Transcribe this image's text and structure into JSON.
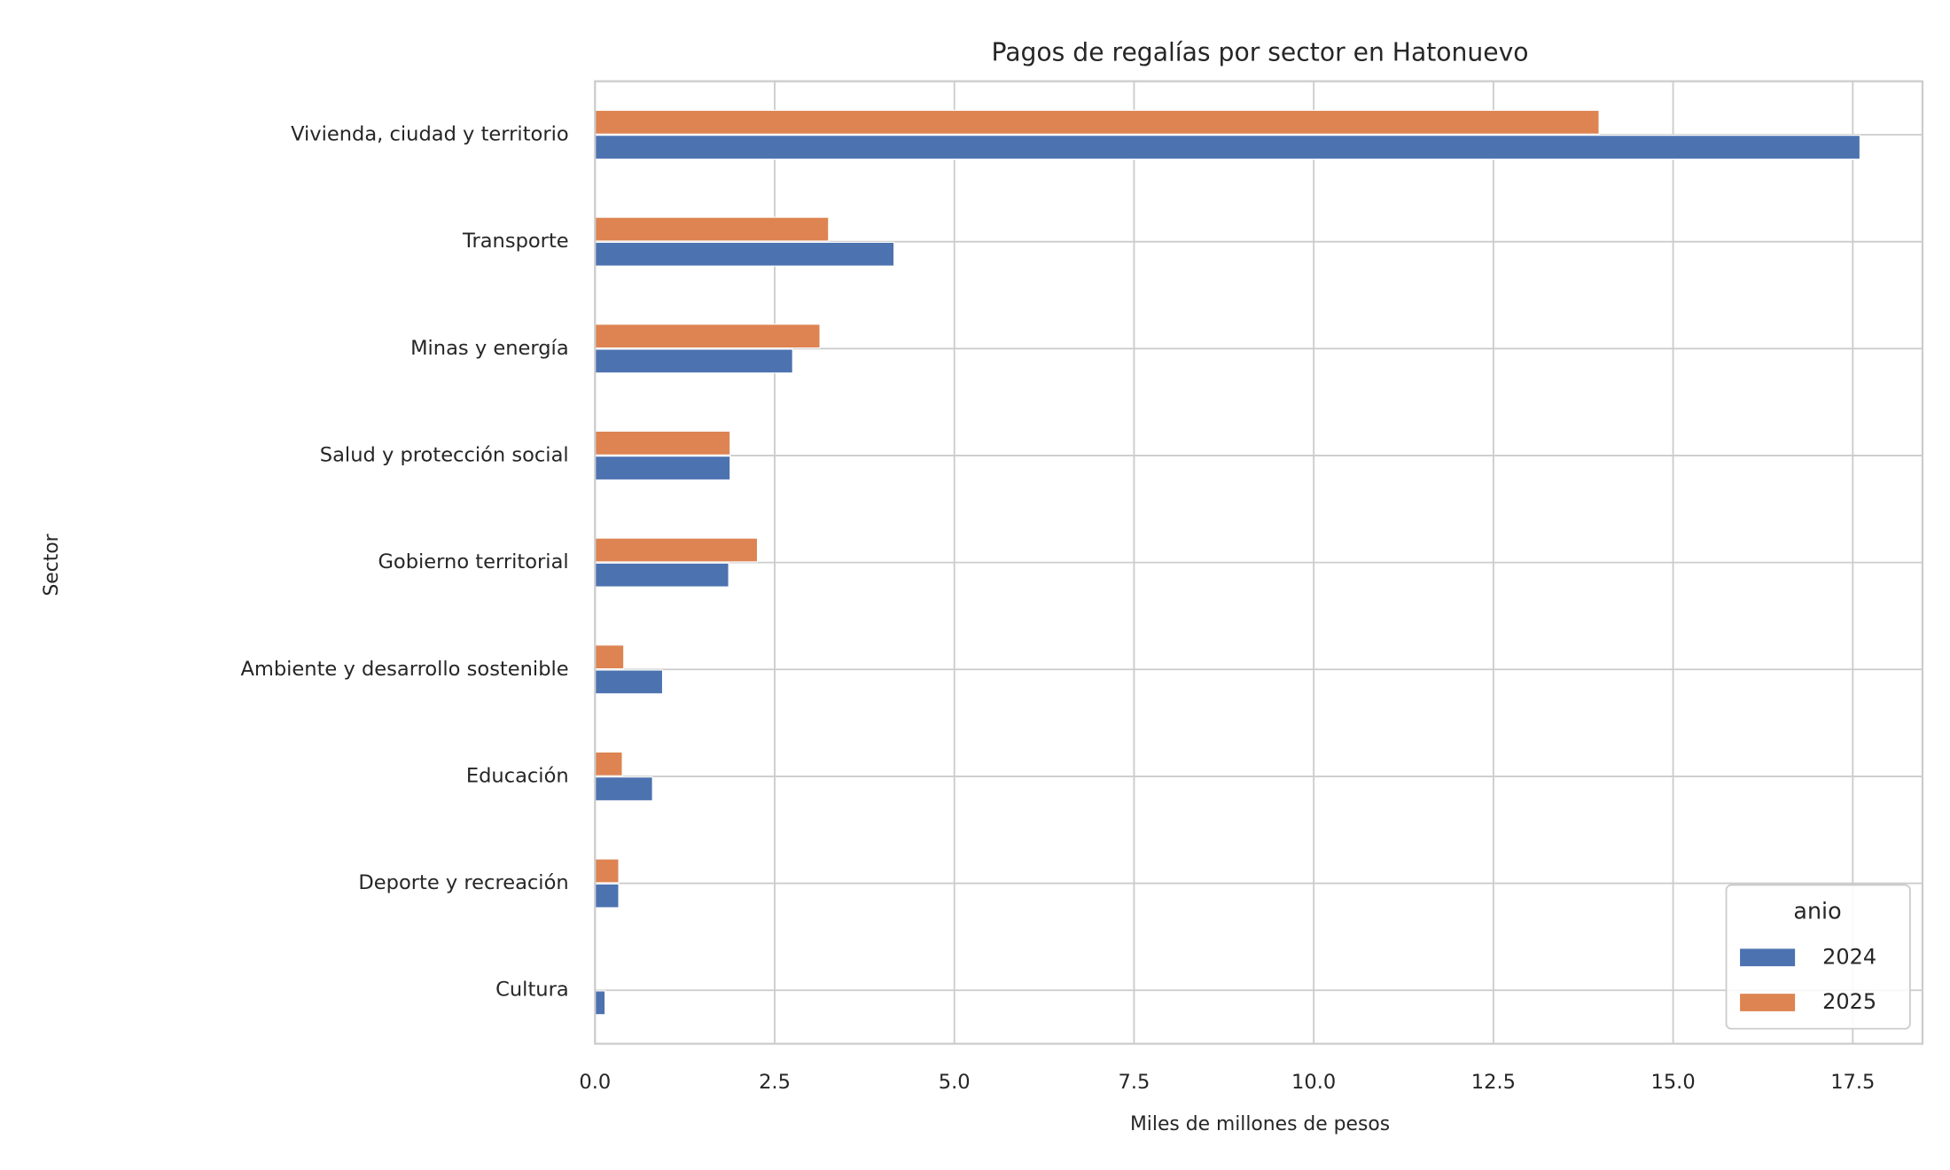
{
  "chart_data": {
    "type": "barh",
    "title": "Pagos de regalías por sector en Hatonuevo",
    "xlabel": "Miles de millones de pesos",
    "ylabel": "Sector",
    "categories": [
      "Vivienda, ciudad y territorio",
      "Transporte",
      "Minas y energía",
      "Salud y protección social",
      "Gobierno territorial",
      "Ambiente y desarrollo sostenible",
      "Educación",
      "Deporte y recreación",
      "Cultura"
    ],
    "series": [
      {
        "name": "2024",
        "color": "#4c72b0",
        "values": [
          17.6,
          4.16,
          2.75,
          1.88,
          1.86,
          0.94,
          0.8,
          0.33,
          0.14
        ]
      },
      {
        "name": "2025",
        "color": "#dd8452",
        "values": [
          13.97,
          3.25,
          3.13,
          1.88,
          2.26,
          0.4,
          0.38,
          0.33,
          null
        ]
      }
    ],
    "xlim": [
      0,
      18.47
    ],
    "xticks": [
      {
        "value": 0,
        "label": "0.0"
      },
      2.5,
      {
        "value": 5,
        "label": "5.0"
      },
      7.5,
      {
        "value": 10,
        "label": "10.0"
      },
      12.5,
      {
        "value": 15,
        "label": "15.0"
      },
      17.5
    ],
    "grid": true,
    "legend_title": "anio",
    "legend_position": "lower right"
  }
}
